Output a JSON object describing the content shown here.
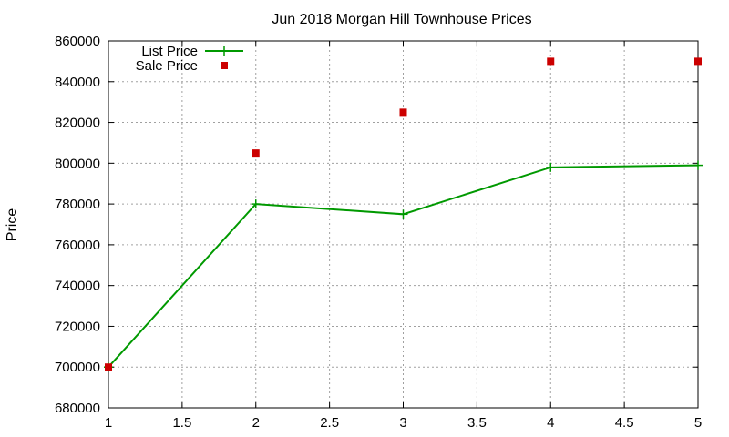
{
  "chart_data": {
    "type": "line",
    "title": "Jun 2018 Morgan Hill Townhouse Prices",
    "xlabel": "",
    "ylabel": "Price",
    "xlim": [
      1,
      5
    ],
    "ylim": [
      680000,
      860000
    ],
    "x_ticks": [
      1,
      1.5,
      2,
      2.5,
      3,
      3.5,
      4,
      4.5,
      5
    ],
    "x_tick_labels": [
      "1",
      "1.5",
      "2",
      "2.5",
      "3",
      "3.5",
      "4",
      "4.5",
      "5"
    ],
    "y_ticks": [
      680000,
      700000,
      720000,
      740000,
      760000,
      780000,
      800000,
      820000,
      840000,
      860000
    ],
    "y_tick_labels": [
      "680000",
      "700000",
      "720000",
      "740000",
      "760000",
      "780000",
      "800000",
      "820000",
      "840000",
      "860000"
    ],
    "grid": true,
    "legend_position": "top-left",
    "series": [
      {
        "name": "List Price",
        "style": "linespoints",
        "marker": "plus",
        "color": "#009900",
        "x": [
          1,
          2,
          3,
          4,
          5
        ],
        "y": [
          700000,
          780000,
          775000,
          798000,
          799000
        ]
      },
      {
        "name": "Sale Price",
        "style": "points",
        "marker": "square",
        "color": "#cc0000",
        "x": [
          1,
          2,
          3,
          4,
          5
        ],
        "y": [
          700000,
          805000,
          825000,
          850000,
          850000
        ]
      }
    ]
  }
}
